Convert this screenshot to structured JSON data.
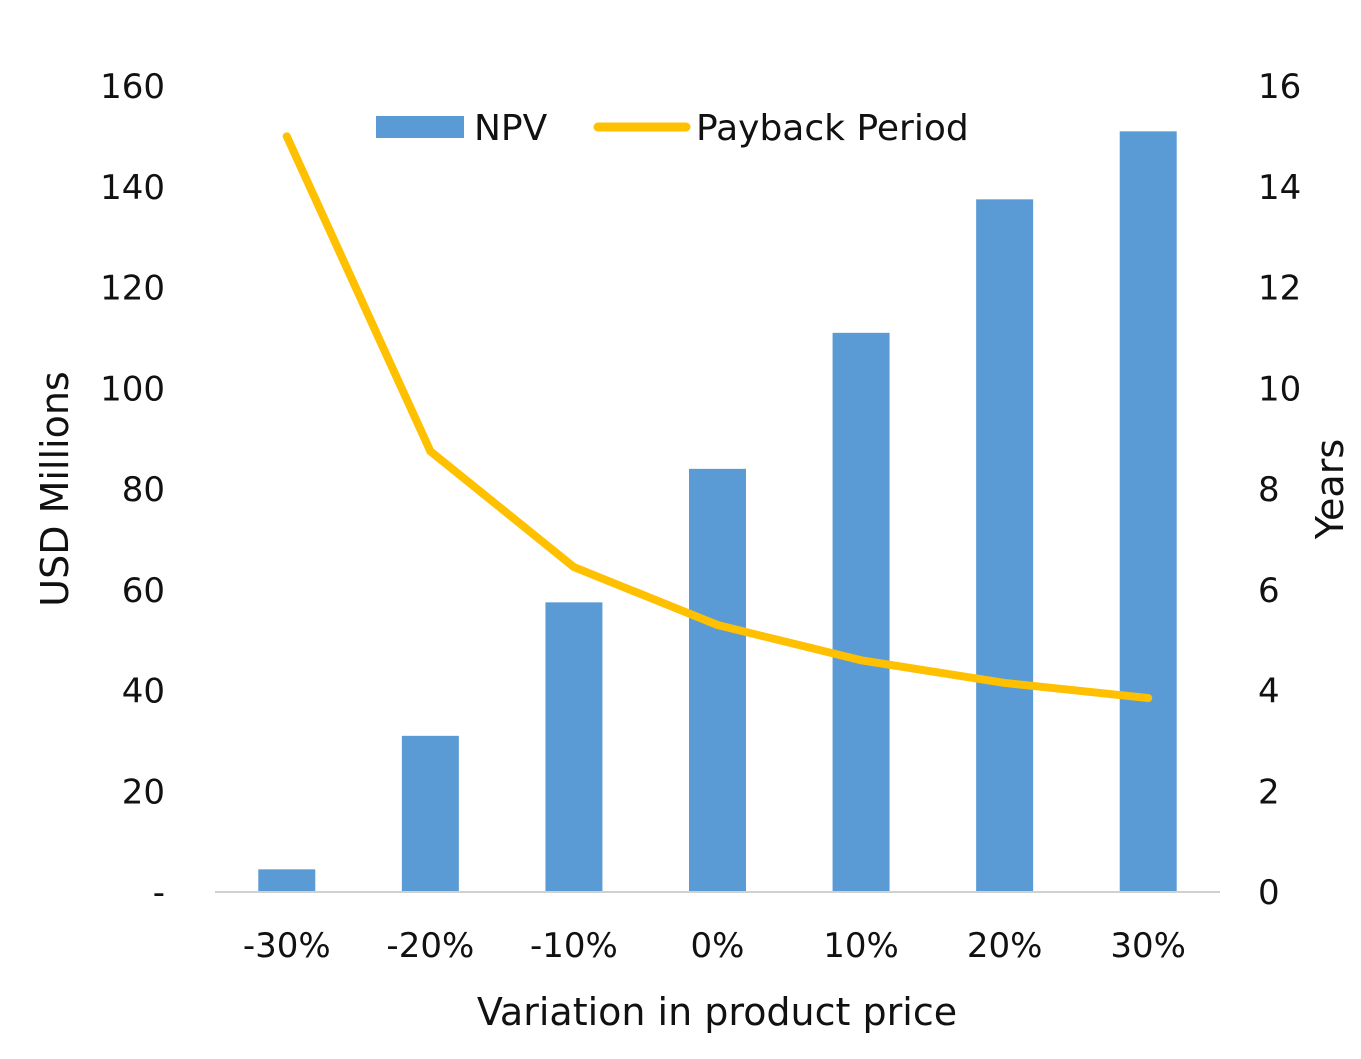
{
  "chart_data": {
    "type": "bar",
    "title": "",
    "xlabel": "Variation in product price",
    "ylabel": "USD Millions",
    "y2label": "Years",
    "categories": [
      "-30%",
      "-20%",
      "-10%",
      "0%",
      "10%",
      "20%",
      "30%"
    ],
    "series": [
      {
        "name": "NPV",
        "type": "bar",
        "axis": "left",
        "color": "#5B9BD5",
        "values": [
          4.5,
          31,
          57.5,
          84,
          111,
          137.5,
          151
        ]
      },
      {
        "name": "Payback Period",
        "type": "line",
        "axis": "right",
        "color": "#FFC000",
        "values": [
          15,
          8.75,
          6.45,
          5.3,
          4.6,
          4.15,
          3.85
        ]
      }
    ],
    "ylim": [
      0,
      160
    ],
    "y2lim": [
      0,
      16
    ],
    "yticks": [
      "-",
      "20",
      "40",
      "60",
      "80",
      "100",
      "120",
      "140",
      "160"
    ],
    "y2ticks": [
      "0",
      "2",
      "4",
      "6",
      "8",
      "10",
      "12",
      "14",
      "16"
    ],
    "grid": false,
    "legend_position": "top"
  }
}
